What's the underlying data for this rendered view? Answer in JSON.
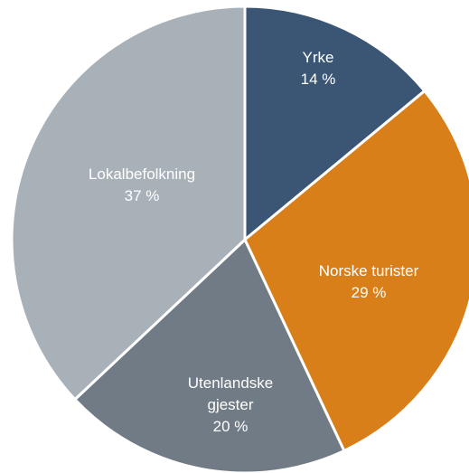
{
  "chart_data": {
    "type": "pie",
    "categories": [
      "Yrke",
      "Norske turister",
      "Utenlandske gjester",
      "Lokalbefolkning"
    ],
    "values": [
      14,
      29,
      20,
      37
    ],
    "value_labels": [
      "14 %",
      "29 %",
      "20 %",
      "37 %"
    ],
    "colors": [
      "#3b5675",
      "#d97f19",
      "#717b85",
      "#a9b1b8"
    ]
  }
}
